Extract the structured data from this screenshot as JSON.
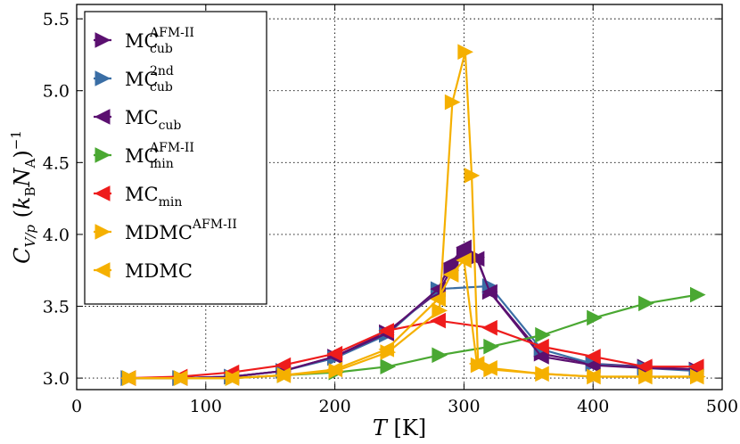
{
  "chart_data": {
    "type": "line",
    "xlabel": "T [K]",
    "xlabel_symbol": "T",
    "xlabel_unit": "[K]",
    "ylabel": "C_{V/p} (k_B N_A)^{-1}",
    "xlim": [
      0,
      500
    ],
    "ylim": [
      2.92,
      5.6
    ],
    "xticks": [
      0,
      100,
      200,
      300,
      400,
      500
    ],
    "yticks": [
      3.0,
      3.5,
      4.0,
      4.5,
      5.0,
      5.5
    ],
    "grid": true,
    "legend_position": "top-left",
    "series": [
      {
        "name": "MC cub AFM-II",
        "base": "MC",
        "sup": "AFM-II",
        "sub": "cub",
        "color": "#5b1070",
        "marker": "triangle-right",
        "x": [
          40,
          80,
          120,
          160,
          200,
          240,
          280,
          290,
          300,
          310,
          320,
          360,
          400,
          440,
          480
        ],
        "y": [
          3.0,
          3.0,
          3.01,
          3.05,
          3.15,
          3.32,
          3.6,
          3.75,
          3.86,
          3.84,
          3.6,
          3.17,
          3.1,
          3.08,
          3.06
        ]
      },
      {
        "name": "MC cub 2nd",
        "base": "MC",
        "sup": "2nd",
        "sub": "cub",
        "color": "#3a6ea5",
        "marker": "triangle-right",
        "x": [
          40,
          80,
          120,
          160,
          200,
          240,
          280,
          320,
          360,
          400,
          440,
          480
        ],
        "y": [
          3.0,
          3.0,
          3.01,
          3.05,
          3.14,
          3.3,
          3.62,
          3.64,
          3.2,
          3.1,
          3.07,
          3.05
        ]
      },
      {
        "name": "MC cub",
        "base": "MC",
        "sup": "",
        "sub": "cub",
        "color": "#5b1070",
        "marker": "triangle-left",
        "x": [
          40,
          80,
          120,
          160,
          200,
          240,
          280,
          290,
          300,
          310,
          320,
          360,
          400,
          440,
          480
        ],
        "y": [
          3.0,
          3.0,
          3.01,
          3.05,
          3.15,
          3.31,
          3.62,
          3.8,
          3.91,
          3.83,
          3.6,
          3.15,
          3.09,
          3.07,
          3.06
        ]
      },
      {
        "name": "MC min AFM-II",
        "base": "MC",
        "sup": "AFM-II",
        "sub": "min",
        "color": "#4aa832",
        "marker": "triangle-right",
        "x": [
          41,
          81,
          121,
          161,
          201,
          241,
          281,
          321,
          361,
          401,
          441,
          481
        ],
        "y": [
          3.0,
          3.0,
          3.0,
          3.02,
          3.04,
          3.08,
          3.16,
          3.22,
          3.3,
          3.42,
          3.52,
          3.58
        ]
      },
      {
        "name": "MC min",
        "base": "MC",
        "sup": "",
        "sub": "min",
        "color": "#ee1c1c",
        "marker": "triangle-left",
        "x": [
          40,
          80,
          120,
          160,
          200,
          240,
          280,
          320,
          360,
          400,
          440,
          480
        ],
        "y": [
          3.0,
          3.01,
          3.04,
          3.09,
          3.17,
          3.33,
          3.4,
          3.35,
          3.22,
          3.15,
          3.08,
          3.08
        ]
      },
      {
        "name": "MDMC AFM-II",
        "base": "MDMC",
        "sup": "AFM-II",
        "sub": "",
        "color": "#f5b000",
        "marker": "triangle-right",
        "x": [
          41,
          81,
          121,
          161,
          201,
          241,
          281,
          291,
          301,
          306,
          311,
          321,
          361,
          401,
          441,
          481
        ],
        "y": [
          3.0,
          3.0,
          3.0,
          3.02,
          3.05,
          3.18,
          3.47,
          4.92,
          5.27,
          4.41,
          3.09,
          3.06,
          3.03,
          3.01,
          3.01,
          3.01
        ]
      },
      {
        "name": "MDMC",
        "base": "MDMC",
        "sup": "",
        "sub": "",
        "color": "#f5b000",
        "marker": "triangle-left",
        "x": [
          40,
          80,
          120,
          160,
          200,
          240,
          280,
          290,
          300,
          310,
          320,
          360,
          400,
          440,
          480
        ],
        "y": [
          3.0,
          3.0,
          3.0,
          3.02,
          3.06,
          3.2,
          3.55,
          3.72,
          3.82,
          3.1,
          3.07,
          3.03,
          3.01,
          3.01,
          3.01
        ]
      }
    ]
  }
}
